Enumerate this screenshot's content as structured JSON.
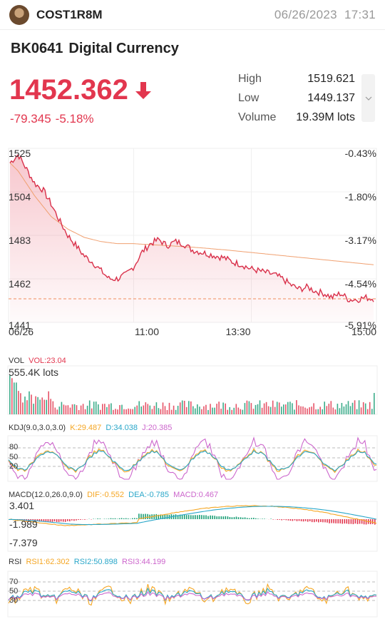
{
  "header": {
    "username": "COST1R8M",
    "date": "06/26/2023",
    "time": "17:31"
  },
  "security": {
    "code": "BK0641",
    "name": "Digital Currency"
  },
  "quote": {
    "price": "1452.362",
    "change": "-79.345",
    "change_pct": "-5.18%",
    "direction": "down"
  },
  "stats": {
    "high_label": "High",
    "high_value": "1519.621",
    "low_label": "Low",
    "low_value": "1449.137",
    "volume_label": "Volume",
    "volume_value": "19.39M lots"
  },
  "colors": {
    "down": "#e2364e",
    "up": "#1a9e76",
    "avg_line": "#f0a070",
    "kdj_k": "#f5a623",
    "kdj_d": "#2aa7c9",
    "kdj_j": "#cc66cc"
  },
  "icons": {
    "price_arrow": "arrow-down-icon",
    "expand": "chevron-down-icon"
  },
  "main_chart": {
    "y_ticks": [
      "1525",
      "1504",
      "1483",
      "1462",
      "1441"
    ],
    "pct_ticks": [
      "-0.43%",
      "-1.80%",
      "-3.17%",
      "-4.54%",
      "-5.91%"
    ],
    "time_ticks": [
      "06/26",
      "11:00",
      "13:30",
      "15:00"
    ]
  },
  "vol_panel": {
    "label": "VOL",
    "vol_value": "VOL:23.04",
    "max_label": "555.4K lots"
  },
  "kdj_panel": {
    "label": "KDJ(9.0,3.0,3.0)",
    "k": "K:29.487",
    "d": "D:34.038",
    "j": "J:20.385",
    "ticks": [
      "80",
      "50",
      "20"
    ]
  },
  "macd_panel": {
    "label": "MACD(12.0,26.0,9.0)",
    "dif": "DIF:-0.552",
    "dea": "DEA:-0.785",
    "macd": "MACD:0.467",
    "ticks": [
      "3.401",
      "-1.989",
      "-7.379"
    ]
  },
  "rsi_panel": {
    "label": "RSI",
    "rsi1": "RSI1:62.302",
    "rsi2": "RSI2:50.898",
    "rsi3": "RSI3:44.199",
    "ticks": [
      "70",
      "50",
      "30"
    ]
  },
  "chart_data": {
    "type": "line",
    "title": "BK0641 Digital Currency",
    "x_ticks": [
      "06/26",
      "11:00",
      "13:30",
      "15:00"
    ],
    "ylim": [
      1441,
      1525
    ],
    "series": [
      {
        "values": [
          1518,
          1522,
          1515,
          1508,
          1505,
          1498,
          1490,
          1483,
          1478,
          1473,
          1470,
          1466,
          1462,
          1462,
          1464,
          1468,
          1475,
          1479,
          1481,
          1478,
          1480,
          1479,
          1476,
          1475,
          1474,
          1473,
          1472,
          1470,
          1469,
          1467,
          1466,
          1465,
          1464,
          1462,
          1459,
          1457,
          1458,
          1456,
          1455,
          1453,
          1455,
          1452,
          1452,
          1453,
          1452.362
        ]
      },
      {
        "values": [
          1518,
          1514,
          1508,
          1502,
          1497,
          1492,
          1489,
          1486,
          1484,
          1482,
          1481,
          1480,
          1479.5,
          1479,
          1479,
          1479,
          1478.7,
          1478.5,
          1478.3,
          1478,
          1477.8,
          1477.5,
          1477.3,
          1477,
          1476.7,
          1476.3,
          1476,
          1475.6,
          1475.2,
          1474.8,
          1474.4,
          1474,
          1473.6,
          1473.2,
          1472.8,
          1472.4,
          1472,
          1471.6,
          1471.2,
          1470.8,
          1470.4,
          1470,
          1469.6,
          1469.2,
          1468.8
        ]
      }
    ],
    "reference_line": 1452.362
  }
}
